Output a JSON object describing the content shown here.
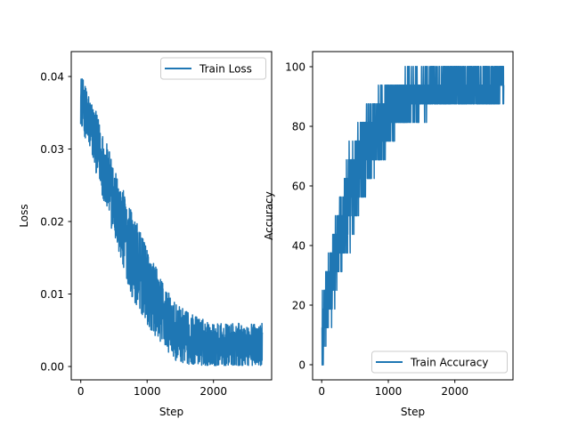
{
  "chart_data": [
    {
      "type": "line",
      "xlabel": "Step",
      "ylabel": "Loss",
      "xlim": [
        -140,
        2880
      ],
      "ylim": [
        -0.0018,
        0.0435
      ],
      "xticks": [
        0,
        1000,
        2000
      ],
      "xtick_labels": [
        "0",
        "1000",
        "2000"
      ],
      "yticks": [
        0.0,
        0.01,
        0.02,
        0.03,
        0.04
      ],
      "ytick_labels": [
        "0.00",
        "0.01",
        "0.02",
        "0.03",
        "0.04"
      ],
      "grid": false,
      "legend_position": "top-right",
      "series": [
        {
          "name": "Train Loss",
          "color": "#1f77b4",
          "x_max": 2740,
          "trend": [
            [
              0,
              0.037
            ],
            [
              200,
              0.032
            ],
            [
              400,
              0.026
            ],
            [
              600,
              0.02
            ],
            [
              800,
              0.015
            ],
            [
              1000,
              0.011
            ],
            [
              1200,
              0.008
            ],
            [
              1400,
              0.005
            ],
            [
              1600,
              0.004
            ],
            [
              2000,
              0.003
            ],
            [
              2400,
              0.003
            ],
            [
              2740,
              0.003
            ]
          ],
          "noise": [
            [
              0,
              0.0035
            ],
            [
              800,
              0.006
            ],
            [
              1400,
              0.004
            ],
            [
              2000,
              0.003
            ],
            [
              2740,
              0.003
            ]
          ],
          "max_value": 0.0415,
          "min_value": 0.0002
        }
      ]
    },
    {
      "type": "line",
      "xlabel": "Step",
      "ylabel": "Accuracy",
      "xlim": [
        -140,
        2880
      ],
      "ylim": [
        -5,
        105
      ],
      "xticks": [
        0,
        1000,
        2000
      ],
      "xtick_labels": [
        "0",
        "1000",
        "2000"
      ],
      "yticks": [
        0,
        20,
        40,
        60,
        80,
        100
      ],
      "ytick_labels": [
        "0",
        "20",
        "40",
        "60",
        "80",
        "100"
      ],
      "grid": false,
      "legend_position": "bottom-right",
      "series": [
        {
          "name": "Train Accuracy",
          "color": "#1f77b4",
          "x_max": 2740,
          "trend": [
            [
              0,
              12
            ],
            [
              200,
              35
            ],
            [
              400,
              55
            ],
            [
              600,
              68
            ],
            [
              800,
              78
            ],
            [
              1000,
              84
            ],
            [
              1200,
              88
            ],
            [
              1600,
              92
            ],
            [
              2000,
              93
            ],
            [
              2740,
              94
            ]
          ],
          "noise": [
            [
              0,
              12
            ],
            [
              400,
              17
            ],
            [
              800,
              13
            ],
            [
              1200,
              9
            ],
            [
              2000,
              7
            ],
            [
              2740,
              6
            ]
          ],
          "quantum": 6.25,
          "max_value": 100,
          "min_value": 0
        }
      ]
    }
  ]
}
